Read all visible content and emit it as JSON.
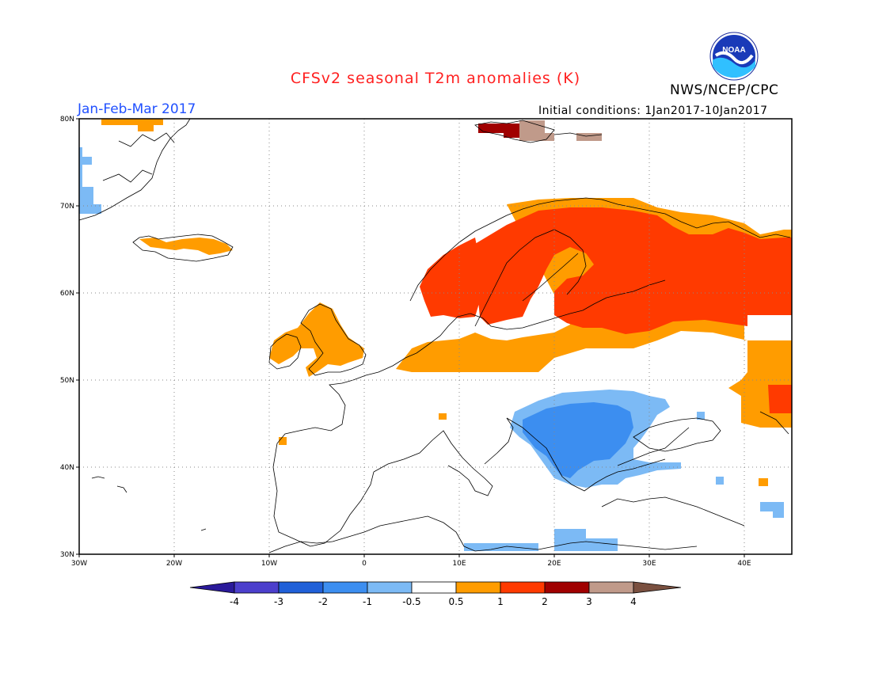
{
  "header": {
    "title": "CFSv2 seasonal T2m anomalies (K)",
    "organization": "NWS/NCEP/CPC",
    "period": "Jan-Feb-Mar 2017",
    "initial_conditions": "Initial conditions: 1Jan2017-10Jan2017",
    "logo_text": "NOAA"
  },
  "map": {
    "lon_labels": [
      "30W",
      "20W",
      "10W",
      "0",
      "10E",
      "20E",
      "30E",
      "40E"
    ],
    "lat_labels": [
      "80N",
      "70N",
      "60N",
      "50N",
      "40N",
      "30N"
    ],
    "lon_range": [
      -30,
      45
    ],
    "lat_range": [
      30,
      80
    ],
    "grid": true
  },
  "colorbar": {
    "labels": [
      "-4",
      "-3",
      "-2",
      "-1",
      "-0.5",
      "0.5",
      "1",
      "2",
      "3",
      "4"
    ],
    "colors": [
      "#2a1a9a",
      "#4c3fcc",
      "#2060d8",
      "#3c8ef0",
      "#7cbaf5",
      "#ffffff",
      "#ff9c00",
      "#ff3a00",
      "#a00000",
      "#c09a8a",
      "#7a5040"
    ]
  },
  "anomaly_colors": {
    "orange": "#ff9c00",
    "red": "#ff3a00",
    "darkred": "#a00000",
    "tan": "#c09a8a",
    "lightblue": "#7cbaf5",
    "blue": "#3c8ef0"
  }
}
